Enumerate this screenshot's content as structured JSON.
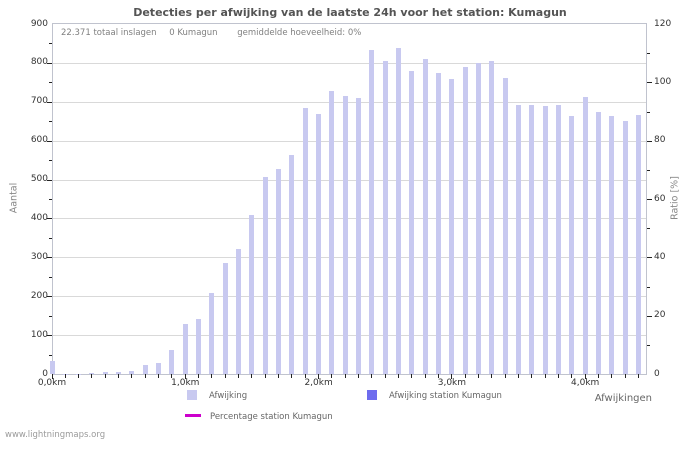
{
  "page": {
    "title": "Detecties per afwijking van de laatste 24h voor het station: Kumagun",
    "footer": "www.lightningmaps.org"
  },
  "info_line": {
    "total_strikes": "22.371 totaal inslagen",
    "station_strikes": "0 Kumagun",
    "average": "gemiddelde hoeveelheid: 0%"
  },
  "axis_labels": {
    "left": "Aantal",
    "right": "Ratio [%]",
    "x": "Afwijkingen"
  },
  "legend": {
    "items": [
      {
        "label": "Afwijking",
        "color": "#c8c9f0",
        "marker": "square"
      },
      {
        "label": "Afwijking station Kumagun",
        "color": "#6e6cee",
        "marker": "square"
      },
      {
        "label": "Percentage station Kumagun",
        "color": "#cc00cc",
        "marker": "line"
      }
    ]
  },
  "colors": {
    "bar": "#c8c9f0",
    "station_bar": "#6e6cee",
    "percentage_line": "#cc00cc",
    "grid": "#d9d9d9",
    "border": "#c0c3ce",
    "tick": "#222222",
    "title_text": "#545454",
    "muted_text": "#808080",
    "axis_text": "#333333"
  },
  "chart_data": {
    "type": "bar",
    "title": "Detecties per afwijking van de laatste 24h voor het station: Kumagun",
    "xlabel": "Afwijkingen",
    "ylabel_left": "Aantal",
    "ylabel_right": "Ratio [%]",
    "grid": "horizontal",
    "legend_position": "bottom",
    "bin_width_km": 0.1,
    "x_km": [
      0.0,
      0.1,
      0.2,
      0.3,
      0.4,
      0.5,
      0.6,
      0.7,
      0.8,
      0.9,
      1.0,
      1.1,
      1.2,
      1.3,
      1.4,
      1.5,
      1.6,
      1.7,
      1.8,
      1.9,
      2.0,
      2.1,
      2.2,
      2.3,
      2.4,
      2.5,
      2.6,
      2.7,
      2.8,
      2.9,
      3.0,
      3.1,
      3.2,
      3.3,
      3.4,
      3.5,
      3.6,
      3.7,
      3.8,
      3.9,
      4.0,
      4.1,
      4.2,
      4.3,
      4.4
    ],
    "x_major_tick_labels": [
      "0,0km",
      "1,0km",
      "2,0km",
      "3,0km",
      "4,0km"
    ],
    "left_axis": {
      "min": 0,
      "max": 900,
      "major_step": 100,
      "minor_step": 50
    },
    "right_axis": {
      "min": 0,
      "max": 120,
      "major_step": 20,
      "minor_step": 10
    },
    "series": [
      {
        "name": "Afwijking",
        "type": "bar",
        "axis": "left",
        "values": [
          33,
          1,
          1,
          2,
          4,
          6,
          7,
          22,
          29,
          61,
          128,
          142,
          209,
          286,
          322,
          408,
          507,
          528,
          562,
          685,
          668,
          729,
          716,
          710,
          832,
          805,
          839,
          779,
          809,
          773,
          759,
          790,
          799,
          805,
          760,
          692,
          692,
          689,
          692,
          663,
          713,
          674,
          663,
          650,
          666
        ]
      },
      {
        "name": "Afwijking station Kumagun",
        "type": "bar",
        "axis": "left",
        "values": [
          0,
          0,
          0,
          0,
          0,
          0,
          0,
          0,
          0,
          0,
          0,
          0,
          0,
          0,
          0,
          0,
          0,
          0,
          0,
          0,
          0,
          0,
          0,
          0,
          0,
          0,
          0,
          0,
          0,
          0,
          0,
          0,
          0,
          0,
          0,
          0,
          0,
          0,
          0,
          0,
          0,
          0,
          0,
          0,
          0
        ]
      },
      {
        "name": "Percentage station Kumagun",
        "type": "line",
        "axis": "right",
        "unit": "%",
        "values": [
          0,
          0,
          0,
          0,
          0,
          0,
          0,
          0,
          0,
          0,
          0,
          0,
          0,
          0,
          0,
          0,
          0,
          0,
          0,
          0,
          0,
          0,
          0,
          0,
          0,
          0,
          0,
          0,
          0,
          0,
          0,
          0,
          0,
          0,
          0,
          0,
          0,
          0,
          0,
          0,
          0,
          0,
          0,
          0,
          0
        ]
      }
    ]
  }
}
